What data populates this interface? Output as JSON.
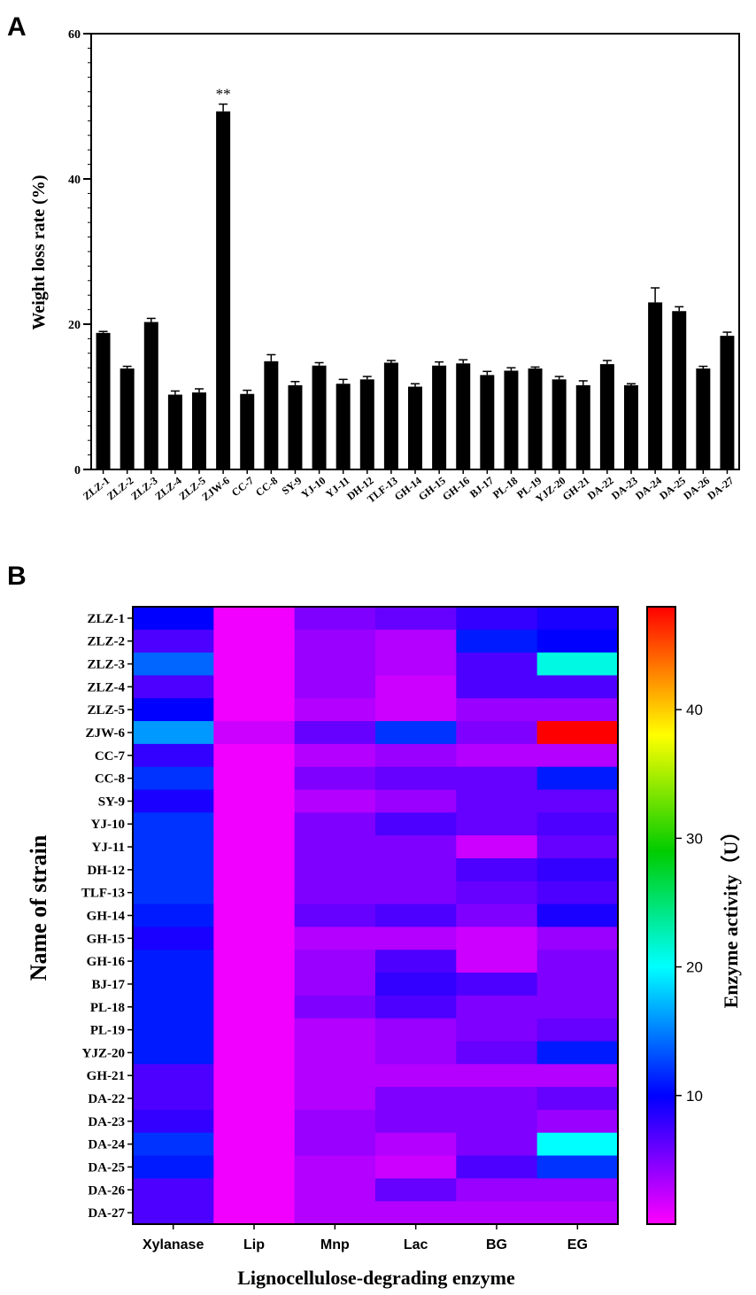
{
  "panels": {
    "a_label": "A",
    "b_label": "B"
  },
  "chart_data": [
    {
      "type": "bar",
      "panel": "A",
      "title": "",
      "xlabel": "",
      "ylabel": "Weight loss rate (%)",
      "ylim": [
        0,
        60
      ],
      "yticks": [
        0,
        20,
        40,
        60
      ],
      "categories": [
        "ZLZ-1",
        "ZLZ-2",
        "ZLZ-3",
        "ZLZ-4",
        "ZLZ-5",
        "ZJW-6",
        "CC-7",
        "CC-8",
        "SY-9",
        "YJ-10",
        "YJ-11",
        "DH-12",
        "TLF-13",
        "GH-14",
        "GH-15",
        "GH-16",
        "BJ-17",
        "PL-18",
        "PL-19",
        "YJZ-20",
        "GH-21",
        "DA-22",
        "DA-23",
        "DA-24",
        "DA-25",
        "DA-26",
        "DA-27"
      ],
      "values": [
        18.8,
        13.9,
        20.3,
        10.3,
        10.6,
        49.3,
        10.4,
        14.9,
        11.6,
        14.3,
        11.8,
        12.4,
        14.7,
        11.4,
        14.3,
        14.6,
        13.0,
        13.6,
        13.9,
        12.4,
        11.6,
        14.5,
        11.6,
        23.0,
        21.8,
        13.9,
        18.4
      ],
      "errors": [
        0.2,
        0.3,
        0.5,
        0.5,
        0.5,
        1.0,
        0.5,
        0.9,
        0.5,
        0.4,
        0.6,
        0.4,
        0.3,
        0.4,
        0.5,
        0.5,
        0.5,
        0.4,
        0.2,
        0.4,
        0.6,
        0.5,
        0.2,
        2.0,
        0.6,
        0.3,
        0.5
      ],
      "annotation": {
        "category": "ZJW-6",
        "text": "**"
      }
    },
    {
      "type": "heatmap",
      "panel": "B",
      "xlabel": "Lignocellulose-degrading enzyme",
      "ylabel": "Name of strain",
      "columns": [
        "Xylanase",
        "Lip",
        "Mnp",
        "Lac",
        "BG",
        "EG"
      ],
      "rows": [
        "ZLZ-1",
        "ZLZ-2",
        "ZLZ-3",
        "ZLZ-4",
        "ZLZ-5",
        "ZJW-6",
        "CC-7",
        "CC-8",
        "SY-9",
        "YJ-10",
        "YJ-11",
        "DH-12",
        "TLF-13",
        "GH-14",
        "GH-15",
        "GH-16",
        "BJ-17",
        "PL-18",
        "PL-19",
        "YJZ-20",
        "GH-21",
        "DA-22",
        "DA-23",
        "DA-24",
        "DA-25",
        "DA-26",
        "DA-27"
      ],
      "values": [
        [
          10,
          0.5,
          5,
          6,
          8,
          9
        ],
        [
          7,
          0.5,
          4,
          3,
          11,
          10
        ],
        [
          14,
          0.5,
          4,
          3,
          7,
          21
        ],
        [
          7,
          0.5,
          4,
          2,
          7,
          7
        ],
        [
          10,
          0.5,
          3,
          2,
          4,
          4
        ],
        [
          16,
          2,
          6,
          12,
          5,
          48
        ],
        [
          8,
          0.5,
          3,
          4,
          3,
          3
        ],
        [
          12,
          0.5,
          5,
          6,
          6,
          11
        ],
        [
          9,
          0.5,
          3,
          4,
          6,
          6
        ],
        [
          12,
          0.5,
          5,
          7,
          6,
          7
        ],
        [
          12,
          0.5,
          5,
          5,
          2,
          6
        ],
        [
          12,
          0.5,
          5,
          5,
          7,
          8
        ],
        [
          12,
          0.5,
          5,
          5,
          6,
          7
        ],
        [
          11,
          0.5,
          6,
          7,
          5,
          9
        ],
        [
          9,
          0.5,
          3,
          3,
          2,
          4
        ],
        [
          11,
          0.5,
          4,
          7,
          2,
          5
        ],
        [
          11,
          0.5,
          4,
          8,
          7,
          5
        ],
        [
          11,
          0.5,
          5,
          7,
          5,
          5
        ],
        [
          11,
          0.5,
          3,
          4,
          5,
          6
        ],
        [
          11,
          0.5,
          3,
          4,
          6,
          11
        ],
        [
          7,
          0.5,
          3,
          3,
          3,
          3
        ],
        [
          7,
          0.5,
          3,
          5,
          5,
          6
        ],
        [
          8,
          0.5,
          4,
          5,
          5,
          4
        ],
        [
          12,
          0.5,
          4,
          3,
          5,
          20
        ],
        [
          11,
          0.5,
          3,
          2,
          7,
          12
        ],
        [
          7,
          0.5,
          3,
          6,
          4,
          4
        ],
        [
          7,
          0.5,
          3,
          3,
          3,
          3
        ]
      ],
      "colorbar": {
        "label": "Enzyme activity（U）",
        "range": [
          0,
          48
        ],
        "ticks": [
          10,
          20,
          30,
          40
        ]
      }
    }
  ]
}
